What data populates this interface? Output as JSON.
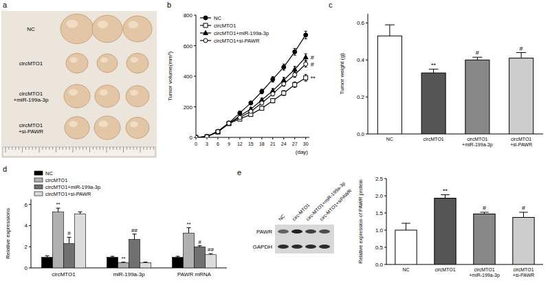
{
  "panel_labels": [
    "a",
    "b",
    "c",
    "d",
    "e"
  ],
  "photo": {
    "row_labels": [
      "NC",
      "circMTO1",
      "circMTO1 +miR-199a-3p",
      "circMTO1 +si-PAWR"
    ]
  },
  "blot": {
    "row_labels": [
      "PAWR",
      "GAPDH"
    ],
    "column_labels": [
      "NC",
      "circ-MTO1",
      "circ-MTO1+miR-199a-3p",
      "circ-MTO1+siPAWR"
    ]
  },
  "chart_data": [
    {
      "type": "line",
      "y_label": "Tumor volume(mm³)",
      "x_label": "(day)",
      "x": [
        0,
        3,
        6,
        9,
        12,
        15,
        18,
        21,
        24,
        27,
        30
      ],
      "xlim": [
        0,
        31
      ],
      "xticks": [
        0,
        3,
        6,
        9,
        12,
        15,
        18,
        21,
        24,
        27,
        30
      ],
      "ylim": [
        0,
        800
      ],
      "yticks": [
        0,
        200,
        400,
        600,
        800
      ],
      "legend": "upper left",
      "series": [
        {
          "name": "NC",
          "color": "#000000",
          "marker": "circle",
          "values": [
            0,
            5,
            40,
            95,
            160,
            225,
            300,
            380,
            460,
            560,
            670
          ],
          "errors": [
            0,
            2,
            5,
            8,
            10,
            12,
            15,
            18,
            20,
            22,
            25
          ],
          "annotations": [
            null,
            null,
            null,
            null,
            null,
            null,
            null,
            null,
            null,
            null,
            null
          ]
        },
        {
          "name": "circMTO1",
          "color": "#000000",
          "marker": "square-open",
          "values": [
            0,
            5,
            35,
            90,
            120,
            150,
            190,
            240,
            290,
            345,
            390
          ],
          "errors": [
            0,
            2,
            4,
            6,
            8,
            10,
            12,
            14,
            16,
            18,
            22
          ],
          "annotations": [
            null,
            null,
            null,
            null,
            null,
            null,
            null,
            null,
            null,
            null,
            "**"
          ]
        },
        {
          "name": "circMTO1+miR-199a-3p",
          "color": "#000000",
          "marker": "triangle",
          "values": [
            0,
            5,
            38,
            92,
            140,
            185,
            245,
            305,
            375,
            445,
            525
          ],
          "errors": [
            0,
            2,
            4,
            6,
            8,
            10,
            12,
            15,
            18,
            20,
            22
          ],
          "annotations": [
            null,
            null,
            null,
            null,
            null,
            null,
            null,
            null,
            null,
            null,
            "#"
          ]
        },
        {
          "name": "circMTO1+si-PAWR",
          "color": "#000000",
          "marker": "circle-open",
          "values": [
            0,
            5,
            38,
            92,
            130,
            170,
            225,
            285,
            350,
            410,
            480
          ],
          "errors": [
            0,
            2,
            4,
            6,
            8,
            10,
            12,
            14,
            16,
            18,
            20
          ],
          "annotations": [
            null,
            null,
            null,
            null,
            null,
            null,
            null,
            null,
            null,
            null,
            "#"
          ]
        }
      ]
    },
    {
      "type": "bar",
      "y_label": "Tumor weight (g)",
      "categories": [
        "NC",
        "circMTO1",
        "circMTO1 +miR-199a-3p",
        "circMTO1 +si-PAWR"
      ],
      "values": [
        0.53,
        0.33,
        0.4,
        0.41
      ],
      "errors": [
        0.06,
        0.02,
        0.015,
        0.03
      ],
      "annotations": [
        null,
        "**",
        "#",
        "#"
      ],
      "colors": [
        "#ffffff",
        "#555555",
        "#888888",
        "#cccccc"
      ],
      "ylim": [
        0,
        0.65
      ],
      "yticks": [
        {
          "value": 0,
          "label": "0.0"
        },
        {
          "value": 0.2,
          "label": "0.2"
        },
        {
          "value": 0.4,
          "label": "0.4"
        },
        {
          "value": 0.6,
          "label": "0.6"
        }
      ]
    },
    {
      "type": "bar",
      "y_label": "Relative expressions",
      "categories": [
        "circMTO1",
        "miR-199a-3p",
        "PAWR mRNA"
      ],
      "ylim": [
        0,
        6.5
      ],
      "yticks": [
        0,
        2,
        4,
        6
      ],
      "legend": "upper left",
      "series": [
        {
          "name": "NC",
          "color": "#000000",
          "values": [
            1.0,
            1.0,
            1.0
          ],
          "errors": [
            0.15,
            0.1,
            0.1
          ],
          "annotations": [
            null,
            null,
            null
          ]
        },
        {
          "name": "circMTO1",
          "color": "#b0b0b0",
          "values": [
            5.3,
            0.5,
            3.3
          ],
          "errors": [
            0.35,
            0.05,
            0.5
          ],
          "annotations": [
            "**",
            "**",
            "**"
          ]
        },
        {
          "name": "circMTO1+miR-199a-3p",
          "color": "#707070",
          "values": [
            2.3,
            2.7,
            2.0
          ],
          "errors": [
            0.6,
            0.5,
            0.1
          ],
          "annotations": [
            "#",
            "##",
            "#"
          ]
        },
        {
          "name": "circMTO1+si-PAWR",
          "color": "#dcdcdc",
          "values": [
            5.1,
            0.5,
            1.25
          ],
          "errors": [
            0.2,
            0.05,
            0.1
          ],
          "annotations": [
            null,
            null,
            "##"
          ]
        }
      ]
    },
    {
      "type": "bar",
      "y_label": "Relative expression of PAWR protein",
      "categories": [
        "NC",
        "circMTO1",
        "circMTO1 +miR-199a-3p",
        "circMTO1 +si-PAWR"
      ],
      "values": [
        1.0,
        1.93,
        1.47,
        1.37
      ],
      "errors": [
        0.2,
        0.1,
        0.05,
        0.15
      ],
      "annotations": [
        null,
        "**",
        "#",
        "#"
      ],
      "colors": [
        "#ffffff",
        "#555555",
        "#888888",
        "#cccccc"
      ],
      "ylim": [
        0,
        2.5
      ],
      "yticks": [
        {
          "value": 0,
          "label": "0.0"
        },
        {
          "value": 0.5,
          "label": "0.5"
        },
        {
          "value": 1.0,
          "label": "1.0"
        },
        {
          "value": 1.5,
          "label": "1.5"
        },
        {
          "value": 2.0,
          "label": "2.0"
        },
        {
          "value": 2.5,
          "label": "2.5"
        }
      ]
    }
  ]
}
